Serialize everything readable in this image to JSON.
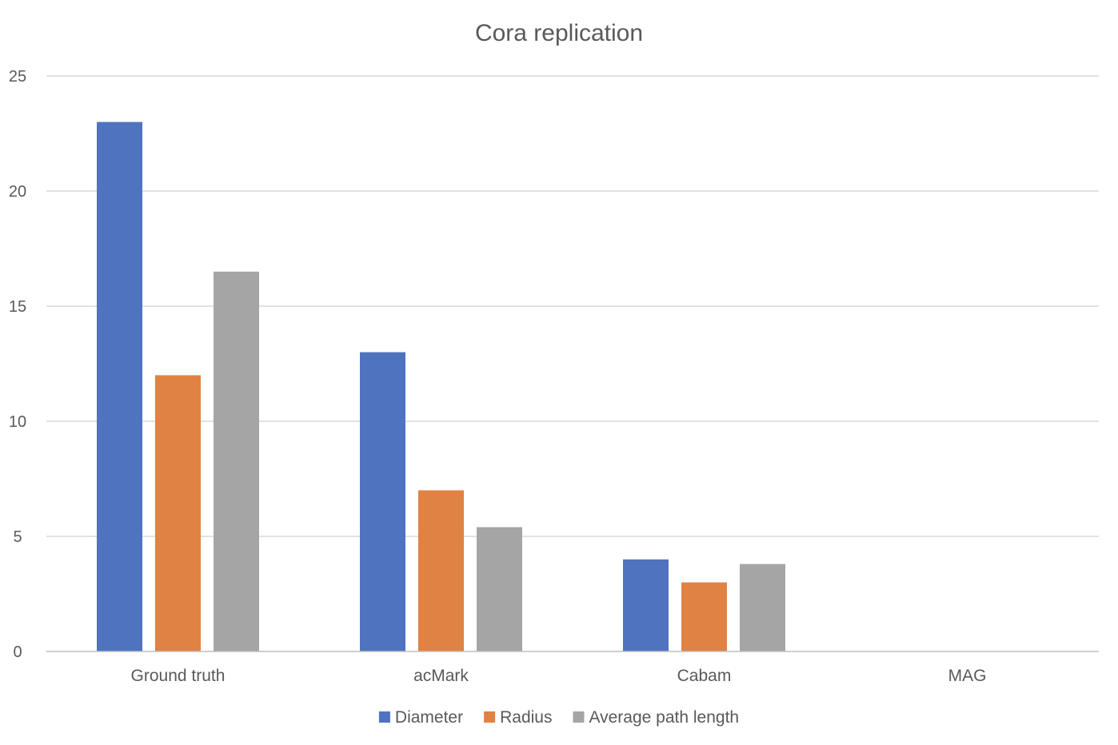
{
  "chart_data": {
    "type": "bar",
    "title": "Cora replication",
    "xlabel": "",
    "ylabel": "",
    "categories": [
      "Ground truth",
      "acMark",
      "Cabam",
      "MAG"
    ],
    "series": [
      {
        "name": "Diameter",
        "color": "#4f73be",
        "values": [
          23,
          13,
          4,
          0
        ]
      },
      {
        "name": "Radius",
        "color": "#e08244",
        "values": [
          12,
          7,
          3,
          0
        ]
      },
      {
        "name": "Average path length",
        "color": "#a5a5a5",
        "values": [
          16.5,
          5.4,
          3.8,
          0
        ]
      }
    ],
    "ylim": [
      0,
      25
    ],
    "yticks": [
      0,
      5,
      10,
      15,
      20,
      25
    ],
    "grid": true,
    "legend_position": "bottom"
  }
}
